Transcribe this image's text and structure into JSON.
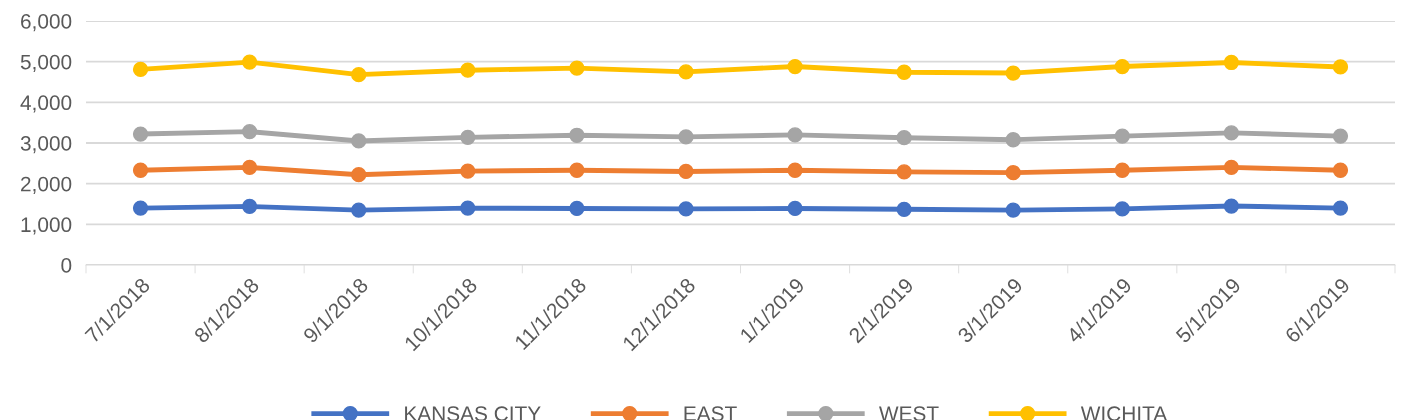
{
  "chart_data": {
    "type": "line",
    "categories": [
      "7/1/2018",
      "8/1/2018",
      "9/1/2018",
      "10/1/2018",
      "11/1/2018",
      "12/1/2018",
      "1/1/2019",
      "2/1/2019",
      "3/1/2019",
      "4/1/2019",
      "5/1/2019",
      "6/1/2019"
    ],
    "series": [
      {
        "name": "KANSAS CITY",
        "color": "#4472c4",
        "values": [
          1400,
          1440,
          1350,
          1400,
          1390,
          1380,
          1390,
          1370,
          1350,
          1380,
          1450,
          1400
        ]
      },
      {
        "name": "EAST",
        "color": "#ed7d31",
        "values": [
          2330,
          2400,
          2220,
          2310,
          2330,
          2300,
          2330,
          2290,
          2270,
          2330,
          2400,
          2330
        ]
      },
      {
        "name": "WEST",
        "color": "#a5a5a5",
        "values": [
          3220,
          3280,
          3050,
          3140,
          3190,
          3150,
          3200,
          3130,
          3080,
          3170,
          3250,
          3170
        ]
      },
      {
        "name": "WICHITA",
        "color": "#ffc000",
        "values": [
          4810,
          4990,
          4680,
          4790,
          4840,
          4750,
          4880,
          4740,
          4720,
          4880,
          4980,
          4870
        ]
      }
    ],
    "ylim": [
      0,
      6000
    ],
    "yticks": [
      {
        "value": 0,
        "label": "0"
      },
      {
        "value": 1000,
        "label": "1,000"
      },
      {
        "value": 2000,
        "label": "2,000"
      },
      {
        "value": 3000,
        "label": "3,000"
      },
      {
        "value": 4000,
        "label": "4,000"
      },
      {
        "value": 5000,
        "label": "5,000"
      },
      {
        "value": 6000,
        "label": "6,000"
      }
    ],
    "grid": "y",
    "legend": "bottom",
    "marker": "circle",
    "line_style": "solid"
  }
}
